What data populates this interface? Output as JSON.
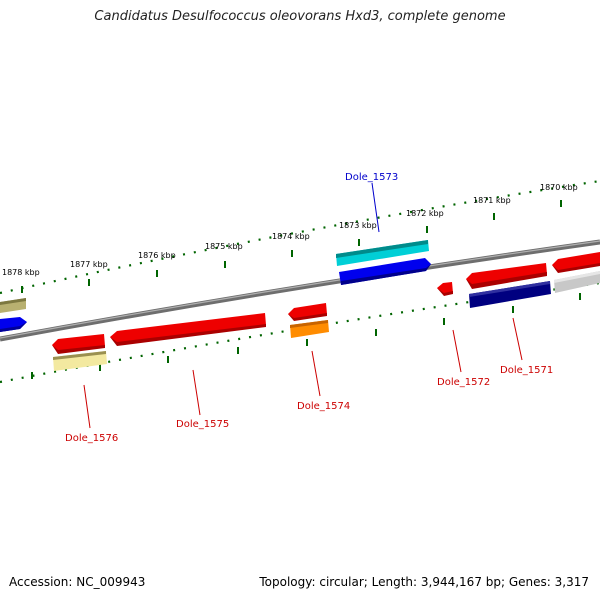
{
  "title": "Candidatus Desulfococcus oleovorans Hxd3, complete genome",
  "footer": {
    "accession": "Accession: NC_009943",
    "topology": "Topology: circular; Length: 3,944,167 bp; Genes: 3,317"
  },
  "scale": {
    "tick_labels": [
      "1878 kbp",
      "1877 kbp",
      "1876 kbp",
      "1875 kbp",
      "1874 kbp",
      "1873 kbp",
      "1872 kbp",
      "1871 kbp",
      "1870 kbp"
    ]
  },
  "genes": [
    {
      "label": "Dole_1576",
      "color": "#cc0000"
    },
    {
      "label": "Dole_1575",
      "color": "#cc0000"
    },
    {
      "label": "Dole_1574",
      "color": "#cc0000"
    },
    {
      "label": "Dole_1573",
      "color": "#0000cc"
    },
    {
      "label": "Dole_1572",
      "color": "#cc0000"
    },
    {
      "label": "Dole_1571",
      "color": "#cc0000"
    }
  ],
  "colors": {
    "backbone": "#808080",
    "tick_marks": "#006400",
    "feature_red": "#ee0000",
    "feature_blue": "#0000ee",
    "feature_navy": "#000080",
    "feature_cyan": "#00c8d0",
    "feature_orange": "#ff8c00",
    "feature_khaki": "#f0e68c",
    "feature_olive": "#a0a060",
    "feature_gray": "#c0c0c0"
  }
}
